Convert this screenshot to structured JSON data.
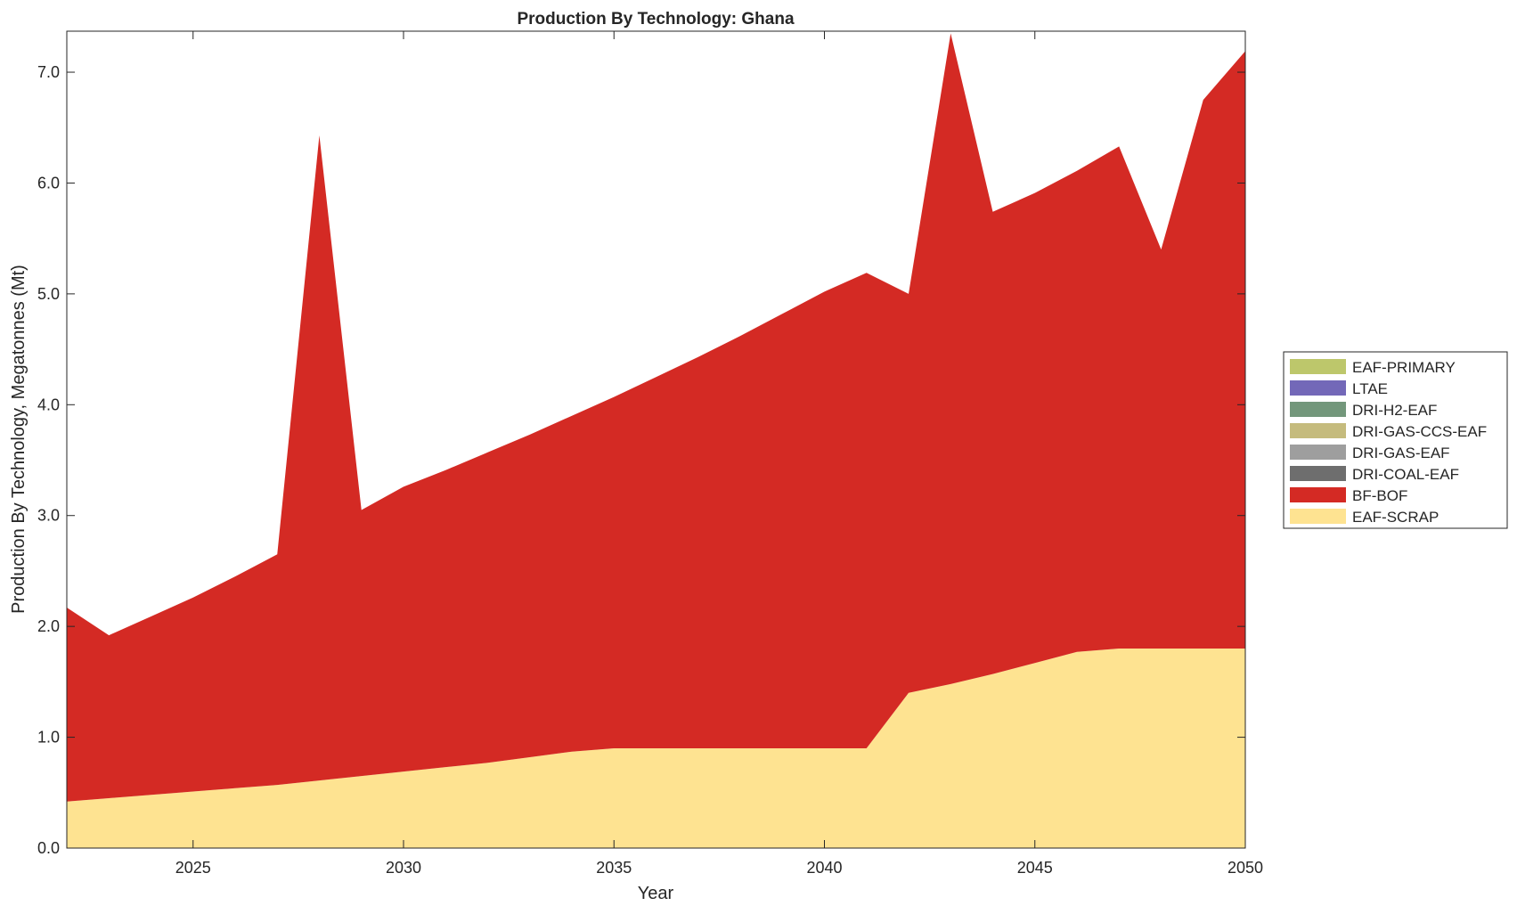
{
  "chart_data": {
    "type": "area",
    "stacked": true,
    "title": "Production By Technology: Ghana",
    "xlabel": "Year",
    "ylabel": "Production By Technology, Megatonnes (Mt)",
    "xlim": [
      2022,
      2050
    ],
    "ylim": [
      0,
      7.37
    ],
    "xticks": [
      2025,
      2030,
      2035,
      2040,
      2045,
      2050
    ],
    "yticks": [
      0,
      1,
      2,
      3,
      4,
      5,
      6,
      7
    ],
    "ytick_labels": [
      "0.0",
      "1.0",
      "2.0",
      "3.0",
      "4.0",
      "5.0",
      "6.0",
      "7.0"
    ],
    "grid": false,
    "legend_placement": "right",
    "x": [
      2022,
      2023,
      2024,
      2025,
      2026,
      2027,
      2028,
      2029,
      2030,
      2031,
      2032,
      2033,
      2034,
      2035,
      2036,
      2037,
      2038,
      2039,
      2040,
      2041,
      2042,
      2043,
      2044,
      2045,
      2046,
      2047,
      2048,
      2049,
      2050
    ],
    "series": [
      {
        "name": "EAF-SCRAP",
        "color": "#fee391",
        "values": [
          0.42,
          0.45,
          0.48,
          0.51,
          0.54,
          0.57,
          0.61,
          0.65,
          0.69,
          0.73,
          0.77,
          0.82,
          0.87,
          0.9,
          0.9,
          0.9,
          0.9,
          0.9,
          0.9,
          0.9,
          1.4,
          1.48,
          1.57,
          1.67,
          1.77,
          1.8,
          1.8,
          1.8,
          1.8
        ]
      },
      {
        "name": "BF-BOF",
        "color": "#d42a24",
        "values": [
          1.75,
          1.47,
          1.61,
          1.75,
          1.91,
          2.08,
          5.82,
          2.4,
          2.57,
          2.68,
          2.8,
          2.91,
          3.03,
          3.17,
          3.35,
          3.53,
          3.72,
          3.92,
          4.12,
          4.29,
          3.6,
          5.87,
          4.17,
          4.24,
          4.34,
          4.53,
          3.6,
          4.95,
          5.39
        ]
      },
      {
        "name": "DRI-COAL-EAF",
        "color": "#6e6e6e",
        "values": [
          0,
          0,
          0,
          0,
          0,
          0,
          0,
          0,
          0,
          0,
          0,
          0,
          0,
          0,
          0,
          0,
          0,
          0,
          0,
          0,
          0,
          0,
          0,
          0,
          0,
          0,
          0,
          0,
          0
        ]
      },
      {
        "name": "DRI-GAS-EAF",
        "color": "#9e9e9e",
        "values": [
          0,
          0,
          0,
          0,
          0,
          0,
          0,
          0,
          0,
          0,
          0,
          0,
          0,
          0,
          0,
          0,
          0,
          0,
          0,
          0,
          0,
          0,
          0,
          0,
          0,
          0,
          0,
          0,
          0
        ]
      },
      {
        "name": "DRI-GAS-CCS-EAF",
        "color": "#c5bb7d",
        "values": [
          0,
          0,
          0,
          0,
          0,
          0,
          0,
          0,
          0,
          0,
          0,
          0,
          0,
          0,
          0,
          0,
          0,
          0,
          0,
          0,
          0,
          0,
          0,
          0,
          0,
          0,
          0,
          0,
          0
        ]
      },
      {
        "name": "DRI-H2-EAF",
        "color": "#73977b",
        "values": [
          0,
          0,
          0,
          0,
          0,
          0,
          0,
          0,
          0,
          0,
          0,
          0,
          0,
          0,
          0,
          0,
          0,
          0,
          0,
          0,
          0,
          0,
          0,
          0,
          0,
          0,
          0,
          0,
          0
        ]
      },
      {
        "name": "LTAE",
        "color": "#7368b8",
        "values": [
          0,
          0,
          0,
          0,
          0,
          0,
          0,
          0,
          0,
          0,
          0,
          0,
          0,
          0,
          0,
          0,
          0,
          0,
          0,
          0,
          0,
          0,
          0,
          0,
          0,
          0,
          0,
          0,
          0
        ]
      },
      {
        "name": "EAF-PRIMARY",
        "color": "#bdc76b",
        "values": [
          0,
          0,
          0,
          0,
          0,
          0,
          0,
          0,
          0,
          0,
          0,
          0,
          0,
          0,
          0,
          0,
          0,
          0,
          0,
          0,
          0,
          0,
          0,
          0,
          0,
          0,
          0,
          0,
          0
        ]
      }
    ],
    "legend_order": [
      "EAF-PRIMARY",
      "LTAE",
      "DRI-H2-EAF",
      "DRI-GAS-CCS-EAF",
      "DRI-GAS-EAF",
      "DRI-COAL-EAF",
      "BF-BOF",
      "EAF-SCRAP"
    ]
  }
}
